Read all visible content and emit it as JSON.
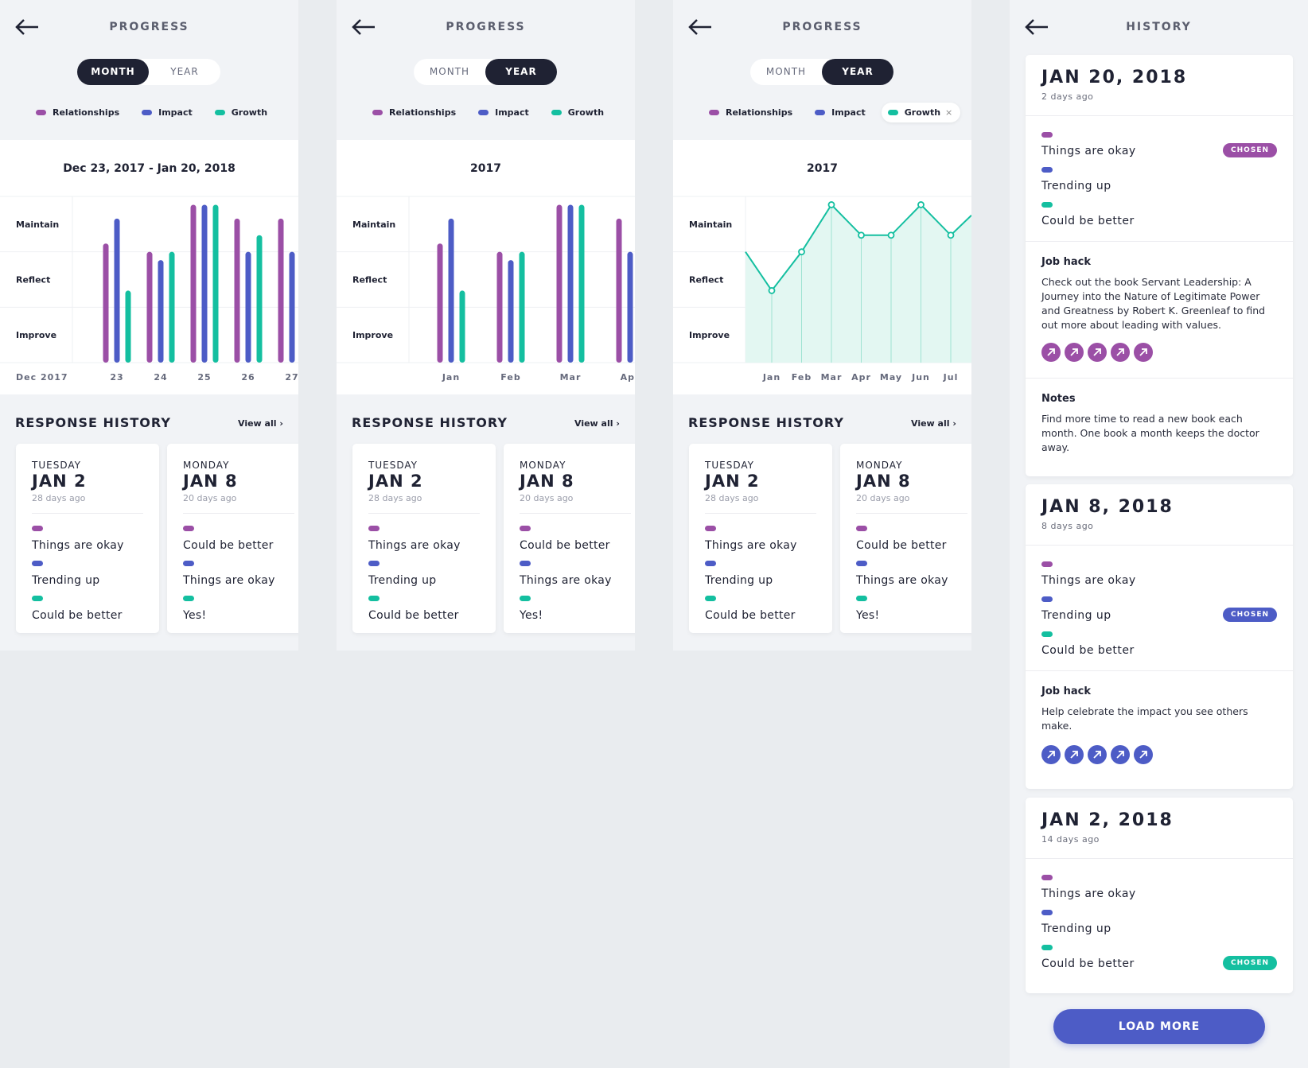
{
  "colors": {
    "relationships": "#9b4fa6",
    "impact": "#4d5cc6",
    "growth": "#14bfa0",
    "dark": "#1f2233"
  },
  "progress": {
    "title": "PROGRESS",
    "toggle": {
      "month": "MONTH",
      "year": "YEAR"
    },
    "legend": {
      "relationships": "Relationships",
      "impact": "Impact",
      "growth": "Growth"
    },
    "y_labels": {
      "top": "Maintain",
      "mid": "Reflect",
      "bot": "Improve"
    },
    "response_history": "RESPONSE HISTORY",
    "view_all": "View all ›",
    "cards": [
      {
        "day": "TUESDAY",
        "date": "JAN 2",
        "ago": "28 days ago",
        "answers": [
          "Things are okay",
          "Trending up",
          "Could be better"
        ]
      },
      {
        "day": "MONDAY",
        "date": "JAN 8",
        "ago": "20 days ago",
        "answers": [
          "Could be better",
          "Things are okay",
          "Yes!"
        ]
      }
    ]
  },
  "chart_data": [
    {
      "type": "bar",
      "title": "Dec 23, 2017 - Jan 20, 2018",
      "x_start_label": "Dec 2017",
      "categories": [
        "23",
        "24",
        "25",
        "26",
        "27"
      ],
      "y_categories": [
        "Improve",
        "Reflect",
        "Maintain"
      ],
      "ylim": [
        0,
        3
      ],
      "series": [
        {
          "name": "Relationships",
          "values": [
            2.15,
            2.0,
            2.85,
            2.6,
            2.6
          ]
        },
        {
          "name": "Impact",
          "values": [
            2.6,
            1.85,
            2.85,
            2.0,
            2.0
          ]
        },
        {
          "name": "Growth",
          "values": [
            1.3,
            2.0,
            2.85,
            2.3,
            null
          ]
        }
      ]
    },
    {
      "type": "bar",
      "title": "2017",
      "categories": [
        "Jan",
        "Feb",
        "Mar",
        "Apr"
      ],
      "y_categories": [
        "Improve",
        "Reflect",
        "Maintain"
      ],
      "ylim": [
        0,
        3
      ],
      "series": [
        {
          "name": "Relationships",
          "values": [
            2.15,
            2.0,
            2.85,
            2.6
          ]
        },
        {
          "name": "Impact",
          "values": [
            2.6,
            1.85,
            2.85,
            2.0
          ]
        },
        {
          "name": "Growth",
          "values": [
            1.3,
            2.0,
            2.85,
            null
          ]
        }
      ]
    },
    {
      "type": "area",
      "title": "2017",
      "categories": [
        "Jan",
        "Feb",
        "Mar",
        "Apr",
        "May",
        "Jun",
        "Jul"
      ],
      "y_categories": [
        "Improve",
        "Reflect",
        "Maintain"
      ],
      "ylim": [
        0,
        3
      ],
      "series": [
        {
          "name": "Growth",
          "values": [
            1.3,
            2.0,
            2.85,
            2.3,
            2.3,
            2.85,
            2.3
          ]
        }
      ]
    }
  ],
  "history": {
    "title": "HISTORY",
    "chosen": "CHOSEN",
    "job_hack_title": "Job hack",
    "notes_title": "Notes",
    "entries": [
      {
        "date": "JAN 20, 2018",
        "ago": "2 days ago",
        "answers": [
          "Things are okay",
          "Trending up",
          "Could be better"
        ],
        "job_hack": "Check out the book Servant Leadership: A Journey into the Nature of Legitimate Power and Greatness by Robert K. Greenleaf to find out more about leading with values.",
        "notes": "Find more time to read a new book each month. One book a month keeps the doctor away."
      },
      {
        "date": "JAN 8, 2018",
        "ago": "8 days ago",
        "answers": [
          "Things are okay",
          "Trending up",
          "Could be better"
        ],
        "job_hack": "Help celebrate the impact you see others make."
      },
      {
        "date": "JAN 2, 2018",
        "ago": "14 days ago",
        "answers": [
          "Things are okay",
          "Trending up",
          "Could be better"
        ]
      }
    ],
    "load_more": "LOAD MORE"
  }
}
